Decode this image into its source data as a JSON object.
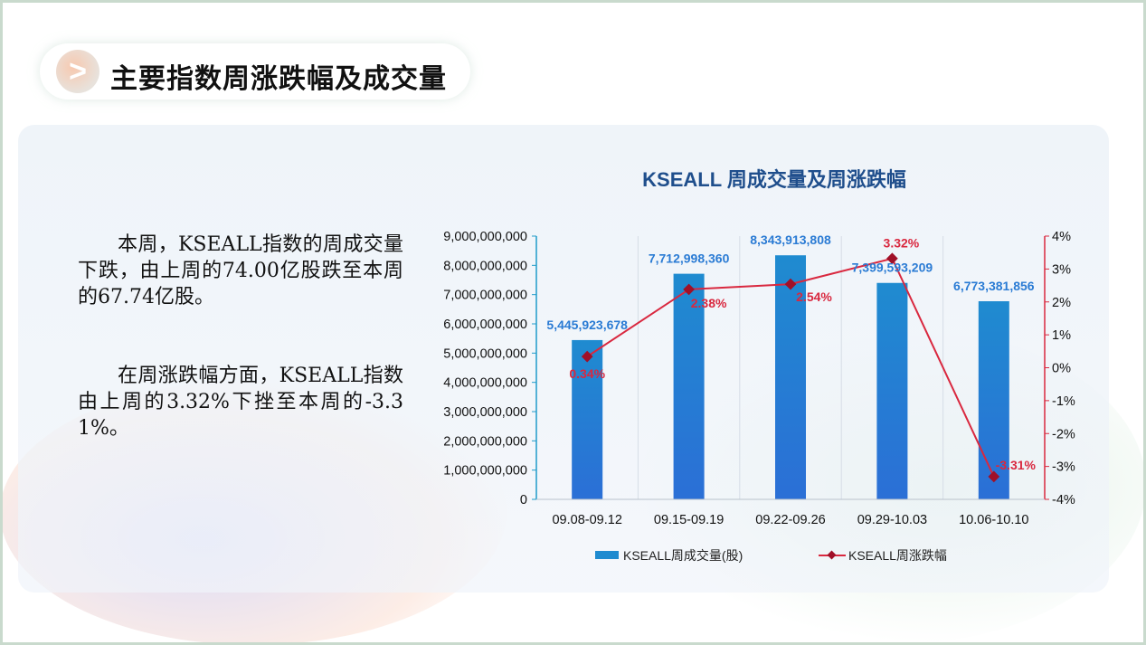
{
  "slide": {
    "title": "主要指数周涨跌幅及成交量",
    "paragraphs": [
      "本周，KSEALL指数的周成交量下跌，由上周的74.00亿股跌至本周的67.74亿股。",
      "在周涨跌幅方面，KSEALL指数由上周的3.32%下挫至本周的-3.31%。"
    ]
  },
  "colors": {
    "bar": "#1f8bd0",
    "bar_bottom": "#2b6fd6",
    "line": "#d9283f",
    "marker": "#a01028",
    "value_label": "#2a7bd4",
    "pct_label": "#d9283f",
    "title": "#1f4e8c"
  },
  "chart_data": {
    "type": "bar",
    "title": "KSEALL 周成交量及周涨跌幅",
    "categories": [
      "09.08-09.12",
      "09.15-09.19",
      "09.22-09.26",
      "09.29-10.03",
      "10.06-10.10"
    ],
    "series": [
      {
        "name": "KSEALL周成交量(股)",
        "type": "bar",
        "axis": "left",
        "values": [
          5445923678,
          7712998360,
          8343913808,
          7399593209,
          6773381856
        ],
        "labels": [
          "5,445,923,678",
          "7,712,998,360",
          "8,343,913,808",
          "7,399,593,209",
          "6,773,381,856"
        ]
      },
      {
        "name": "KSEALL周涨跌幅",
        "type": "line",
        "axis": "right",
        "values": [
          0.34,
          2.38,
          2.54,
          3.32,
          -3.31
        ],
        "labels": [
          "0.34%",
          "2.38%",
          "2.54%",
          "3.32%",
          "-3.31%"
        ]
      }
    ],
    "left_axis": {
      "ylim": [
        0,
        9000000000
      ],
      "ticks": [
        "0",
        "1,000,000,000",
        "2,000,000,000",
        "3,000,000,000",
        "4,000,000,000",
        "5,000,000,000",
        "6,000,000,000",
        "7,000,000,000",
        "8,000,000,000",
        "9,000,000,000"
      ]
    },
    "right_axis": {
      "ylim": [
        -4,
        4
      ],
      "ticks": [
        "-4%",
        "-3%",
        "-2%",
        "-1%",
        "0%",
        "1%",
        "2%",
        "3%",
        "4%"
      ]
    },
    "legend": "bottom"
  }
}
